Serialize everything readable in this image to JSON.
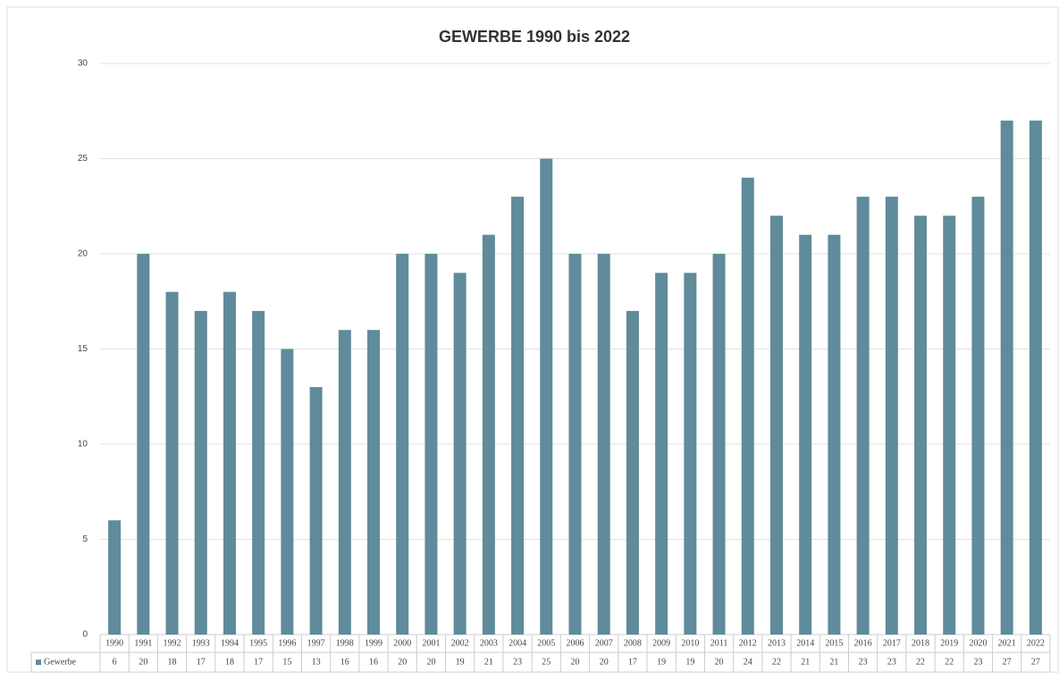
{
  "chart_data": {
    "type": "bar",
    "title": "GEWERBE 1990 bis 2022",
    "categories": [
      "1990",
      "1991",
      "1992",
      "1993",
      "1994",
      "1995",
      "1996",
      "1997",
      "1998",
      "1999",
      "2000",
      "2001",
      "2002",
      "2003",
      "2004",
      "2005",
      "2006",
      "2007",
      "2008",
      "2009",
      "2010",
      "2011",
      "2012",
      "2013",
      "2014",
      "2015",
      "2016",
      "2017",
      "2018",
      "2019",
      "2020",
      "2021",
      "2022"
    ],
    "series": [
      {
        "name": "Gewerbe",
        "color": "#5f8b9a",
        "values": [
          6,
          20,
          18,
          17,
          18,
          17,
          15,
          13,
          16,
          16,
          20,
          20,
          19,
          21,
          23,
          25,
          20,
          20,
          17,
          19,
          19,
          20,
          24,
          22,
          21,
          21,
          23,
          23,
          22,
          22,
          23,
          27,
          27
        ]
      }
    ],
    "ylim": [
      0,
      30
    ],
    "yticks": [
      0,
      5,
      10,
      15,
      20,
      25,
      30
    ],
    "grid": true
  }
}
